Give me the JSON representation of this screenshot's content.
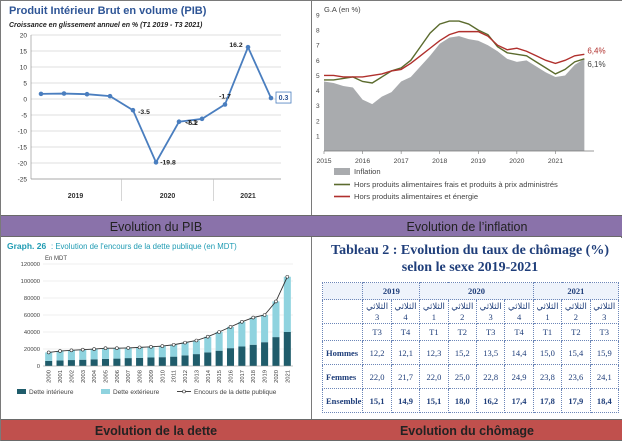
{
  "captions": {
    "pib": "Evolution du PIB",
    "inflation": "Evolution de l’inflation",
    "dette": "Evolution de la dette",
    "chomage": "Evolution du chômage"
  },
  "colors": {
    "pib_line": "#4a7ebf",
    "infl_area": "#a9abae",
    "infl_core": "#5b6b2e",
    "infl_energy": "#b0302d",
    "debt_int": "#1f5c6b",
    "debt_ext": "#8fd3df",
    "table_text": "#1f3e7a"
  },
  "chart_data": [
    {
      "id": "pib",
      "type": "line",
      "title": "Produit Intérieur Brut en volume (PIB)",
      "subtitle": "Croissance en glissement annuel en % (T1 2019 - T3 2021)",
      "x_labels": [
        "2019",
        "2020",
        "2021"
      ],
      "ylim": [
        -25,
        20
      ],
      "yticks": [
        -25,
        -20,
        -15,
        -10,
        -5,
        0,
        5,
        10,
        15,
        20
      ],
      "values": [
        1.6,
        1.7,
        1.5,
        0.9,
        -3.5,
        -19.8,
        -7.1,
        -6.2,
        -1.7,
        16.2,
        0.3
      ],
      "value_labels": [
        "",
        "",
        "",
        "",
        "-3.5",
        "-19.8",
        "-7.1",
        "-6.2",
        "-1.7",
        "16.2",
        "0.3"
      ],
      "grid": true
    },
    {
      "id": "inflation",
      "type": "area",
      "unit_label": "G.A (en %)",
      "ylim": [
        0,
        9
      ],
      "yticks": [
        0,
        1,
        2,
        3,
        4,
        5,
        6,
        7,
        8,
        9
      ],
      "x_ticks": [
        "2015",
        "2016",
        "2017",
        "2018",
        "2019",
        "2020",
        "2021"
      ],
      "x": [
        2015.0,
        2015.25,
        2015.5,
        2015.75,
        2016.0,
        2016.25,
        2016.5,
        2016.75,
        2017.0,
        2017.25,
        2017.5,
        2017.75,
        2018.0,
        2018.25,
        2018.5,
        2018.75,
        2019.0,
        2019.25,
        2019.5,
        2019.75,
        2020.0,
        2020.25,
        2020.5,
        2020.75,
        2021.0,
        2021.25,
        2021.5,
        2021.75
      ],
      "series": [
        {
          "name": "Inflation",
          "values": [
            4.6,
            4.5,
            4.3,
            4.2,
            3.4,
            3.1,
            3.6,
            3.9,
            4.6,
            4.9,
            5.6,
            6.3,
            7.1,
            7.5,
            7.6,
            7.4,
            7.3,
            7.0,
            6.6,
            6.1,
            5.9,
            6.0,
            5.6,
            5.2,
            4.9,
            5.0,
            5.7,
            6.1
          ]
        },
        {
          "name": "Hors produits alimentaires frais et produits à prix administrés",
          "values": [
            4.7,
            4.7,
            4.8,
            4.9,
            4.6,
            4.5,
            4.9,
            5.3,
            5.5,
            6.0,
            6.9,
            7.8,
            8.4,
            8.6,
            8.6,
            8.4,
            8.0,
            7.7,
            6.9,
            6.5,
            6.4,
            6.3,
            5.9,
            5.5,
            5.1,
            5.4,
            5.9,
            6.1
          ]
        },
        {
          "name": "Hors produits alimentaires et énergie",
          "values": [
            5.0,
            5.0,
            4.9,
            4.9,
            4.9,
            5.0,
            5.1,
            5.3,
            5.4,
            5.8,
            6.3,
            6.8,
            7.3,
            7.7,
            7.9,
            7.9,
            7.9,
            7.6,
            7.0,
            6.7,
            6.8,
            6.6,
            6.3,
            6.0,
            5.8,
            6.0,
            6.3,
            6.4
          ]
        }
      ],
      "end_labels": [
        "6,4%",
        "6,1%"
      ]
    },
    {
      "id": "dette",
      "type": "bar",
      "title_prefix": "Graph. 26",
      "title": ": Evolution de l'encours de la dette publique (en MDT)",
      "unit_label": "En MDT",
      "ylim": [
        0,
        120000
      ],
      "yticks": [
        0,
        20000,
        40000,
        60000,
        80000,
        100000,
        120000
      ],
      "categories": [
        "2000",
        "2001",
        "2002",
        "2003",
        "2004",
        "2005",
        "2006",
        "2007",
        "2008",
        "2009",
        "2010",
        "2011",
        "2012",
        "2013",
        "2014",
        "2015",
        "2016",
        "2017",
        "2018",
        "2019",
        "2020",
        "2021"
      ],
      "series": [
        {
          "name": "Dette intérieure",
          "values": [
            6000,
            6600,
            7000,
            7400,
            7900,
            8400,
            8700,
            9300,
            9600,
            10000,
            10400,
            11000,
            12500,
            14000,
            16000,
            18000,
            21000,
            23000,
            25000,
            28000,
            34000,
            40000
          ]
        },
        {
          "name": "Dette extérieure",
          "values": [
            10000,
            11000,
            11500,
            11800,
            12000,
            12500,
            12300,
            12000,
            12300,
            12600,
            13000,
            14000,
            15000,
            16000,
            18500,
            22000,
            25000,
            29000,
            32000,
            32000,
            42000,
            65000
          ]
        },
        {
          "name": "Encours de la dette publique",
          "values": [
            16000,
            17600,
            18500,
            19200,
            19900,
            20900,
            21000,
            21300,
            21900,
            22600,
            23400,
            25000,
            27500,
            30000,
            34500,
            40000,
            46000,
            52000,
            57000,
            60000,
            76000,
            105000
          ]
        }
      ]
    },
    {
      "id": "chomage",
      "type": "table",
      "title": "Tableau 2 : Evolution du taux de chômage (%) selon le sexe 2019-2021",
      "years": [
        "2019",
        "2020",
        "2021"
      ],
      "quarter_words": [
        "الثلاثي 3",
        "الثلاثي 4",
        "الثلاثي 1",
        "الثلاثي 2",
        "الثلاثي 3",
        "الثلاثي 4",
        "الثلاثي 1",
        "الثلاثي 2",
        "الثلاثي 3"
      ],
      "quarter_codes": [
        "T3",
        "T4",
        "T1",
        "T2",
        "T3",
        "T4",
        "T1",
        "T2",
        "T3"
      ],
      "rows": [
        {
          "label": "Hommes",
          "values": [
            "12,2",
            "12,1",
            "12,3",
            "15,2",
            "13,5",
            "14,4",
            "15,0",
            "15,4",
            "15,9"
          ]
        },
        {
          "label": "Femmes",
          "values": [
            "22,0",
            "21,7",
            "22,0",
            "25,0",
            "22,8",
            "24,9",
            "23,8",
            "23,6",
            "24,1"
          ]
        },
        {
          "label": "Ensemble",
          "values": [
            "15,1",
            "14,9",
            "15,1",
            "18,0",
            "16,2",
            "17,4",
            "17,8",
            "17,9",
            "18,4"
          ]
        }
      ]
    }
  ]
}
